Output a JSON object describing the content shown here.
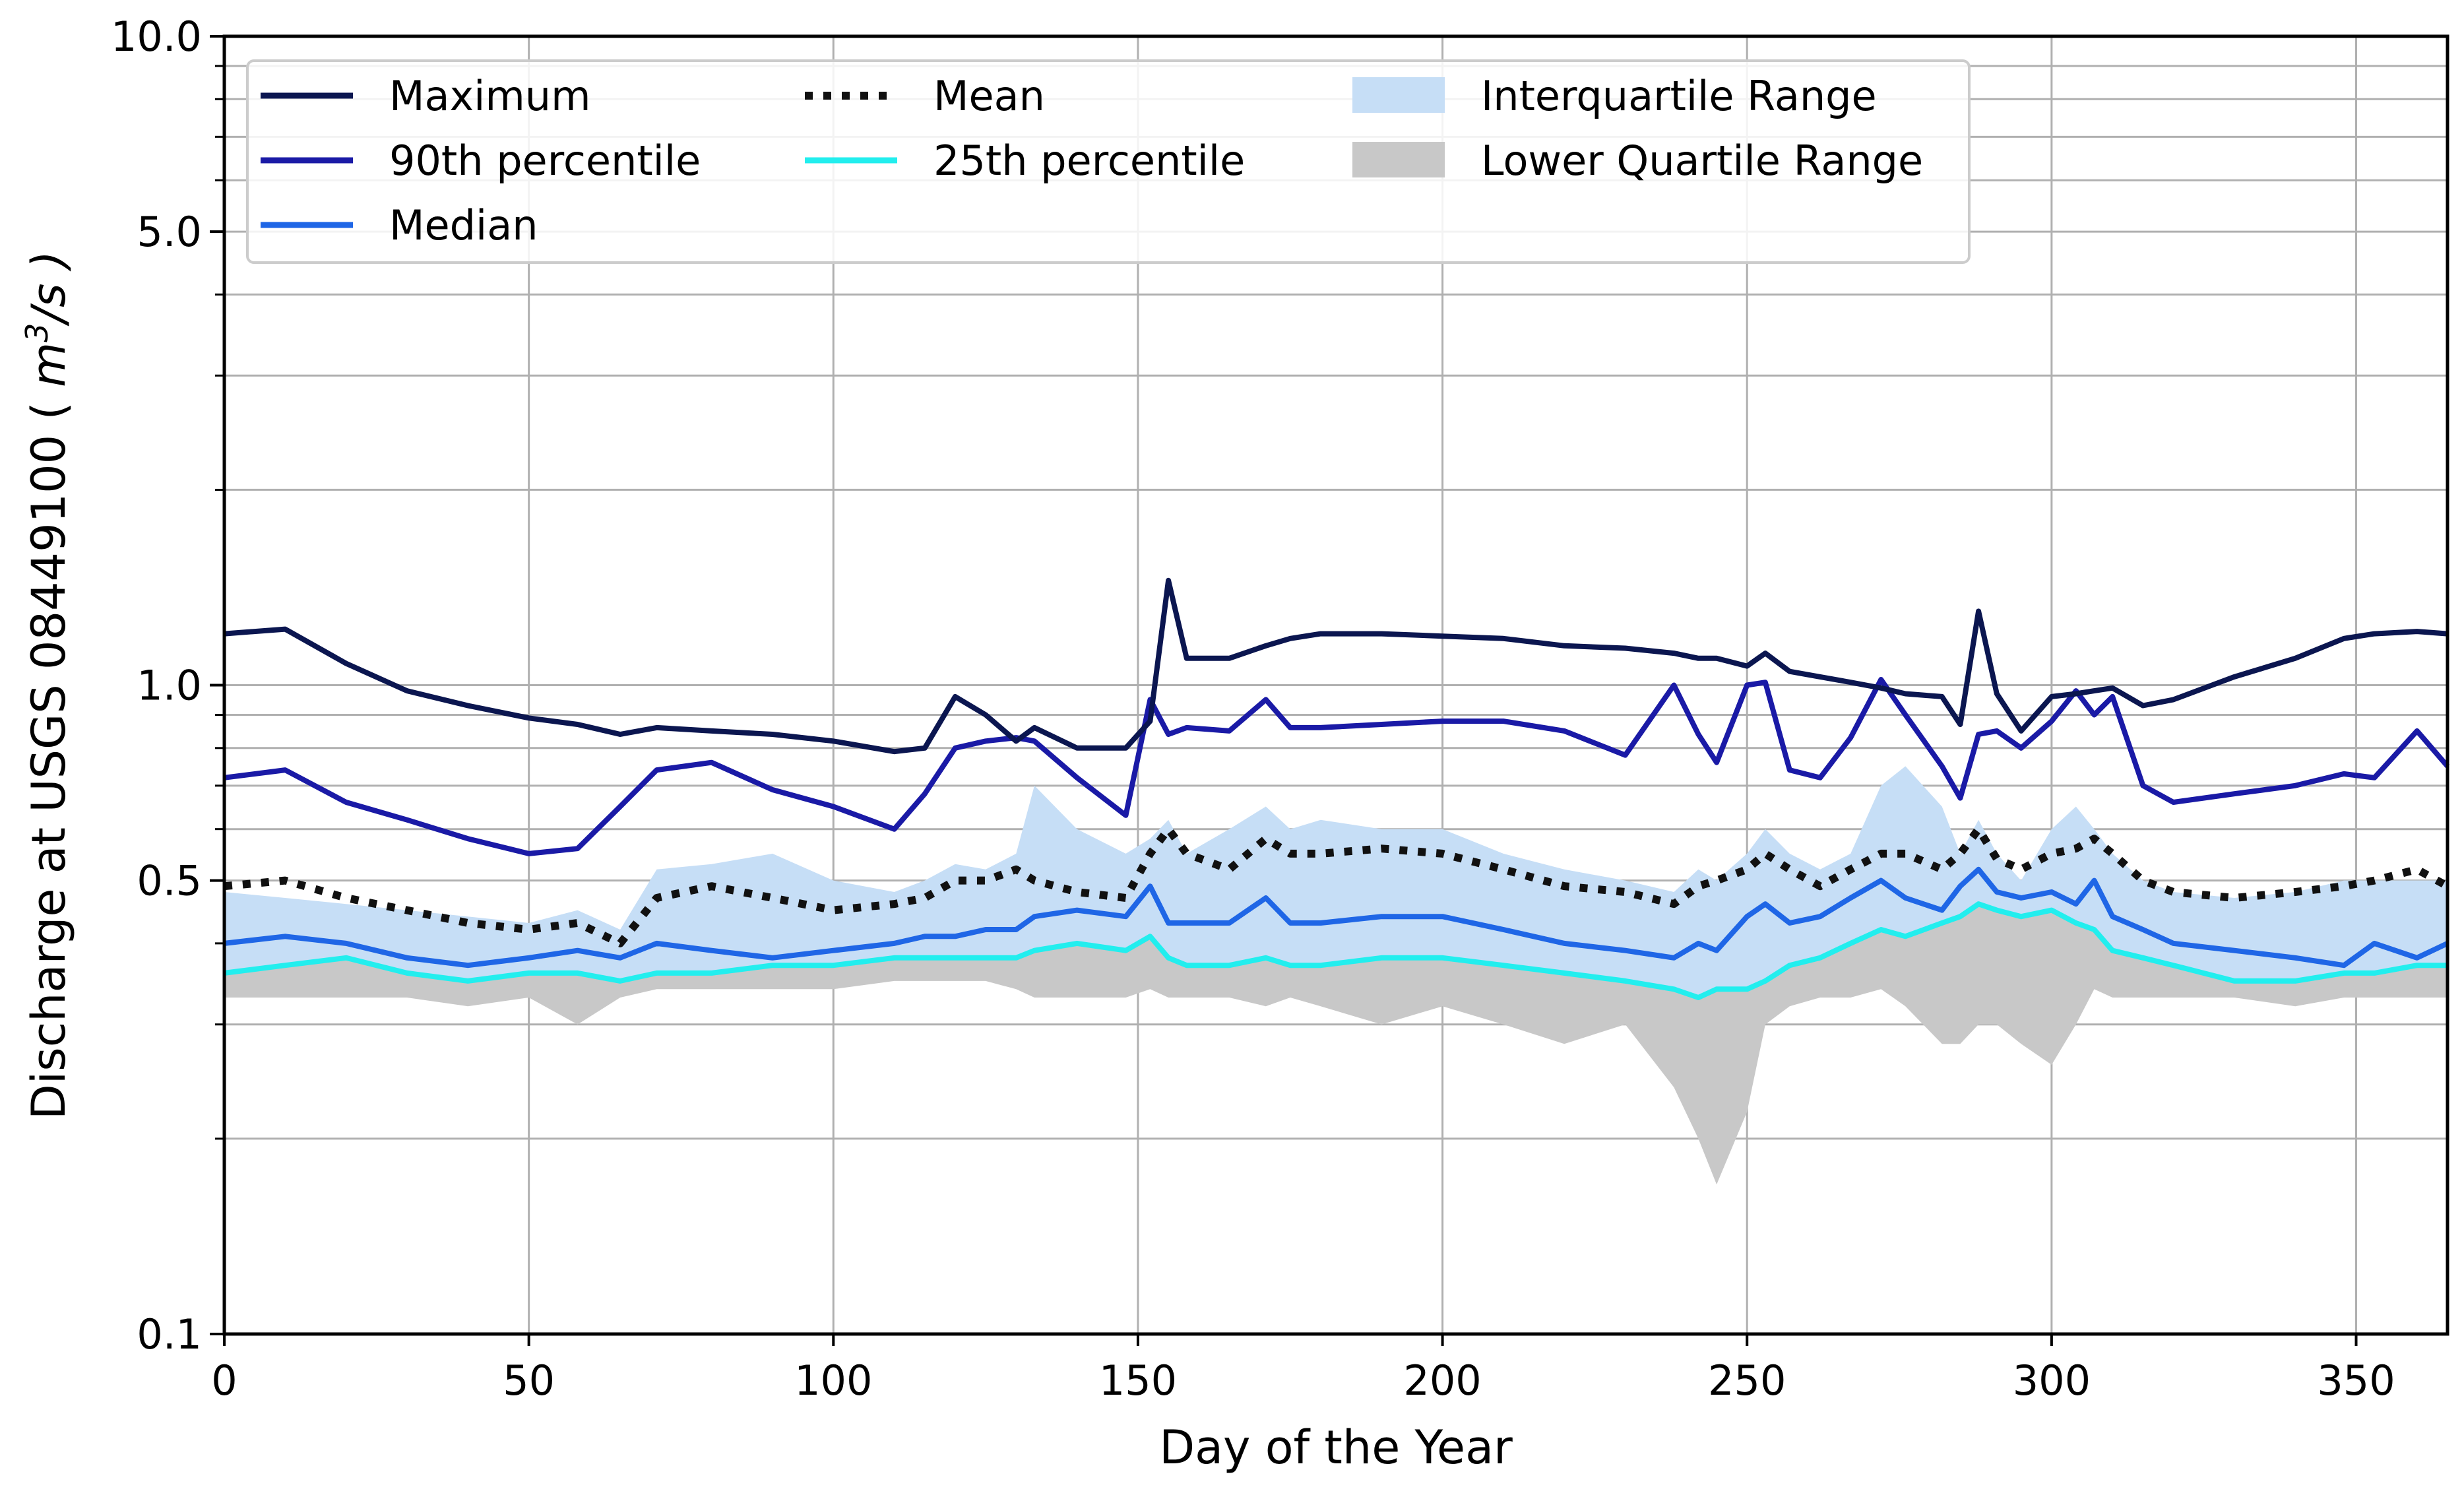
{
  "chart_data": {
    "type": "line",
    "title": "",
    "xlabel": "Day of the Year",
    "ylabel_prefix": "Discharge at USGS 08449100 ( ",
    "ylabel_unit": "m",
    "ylabel_sup": "3",
    "ylabel_suffix": "/s )",
    "yscale": "log",
    "xlim": [
      0,
      365
    ],
    "ylim": [
      0.1,
      10.0
    ],
    "xticks": [
      0,
      50,
      100,
      150,
      200,
      250,
      300,
      350
    ],
    "xtick_labels": [
      "0",
      "50",
      "100",
      "150",
      "200",
      "250",
      "300",
      "350"
    ],
    "yticks": [
      0.1,
      0.5,
      1.0,
      5.0,
      10.0
    ],
    "ytick_labels": [
      "0.1",
      "0.5",
      "1.0",
      "5.0",
      "10.0"
    ],
    "grid": true,
    "legend_position": "top-left",
    "legend": [
      {
        "key": "max",
        "label": "Maximum",
        "kind": "line",
        "color": "#0b1650"
      },
      {
        "key": "mean",
        "label": "Mean",
        "kind": "dotted",
        "color": "#111111"
      },
      {
        "key": "iqr",
        "label": "Interquartile Range",
        "kind": "patch",
        "color": "#c6def6"
      },
      {
        "key": "p90",
        "label": "90th percentile",
        "kind": "line",
        "color": "#1a1aa6"
      },
      {
        "key": "p25",
        "label": "25th percentile",
        "kind": "line",
        "color": "#22eeee"
      },
      {
        "key": "lqr",
        "label": "Lower Quartile Range",
        "kind": "patch",
        "color": "#c8c8c8"
      },
      {
        "key": "median",
        "label": "Median",
        "kind": "line",
        "color": "#1f66e6"
      }
    ],
    "x": [
      0,
      10,
      20,
      30,
      40,
      50,
      58,
      65,
      71,
      80,
      90,
      100,
      110,
      115,
      120,
      125,
      130,
      133,
      140,
      148,
      152,
      155,
      158,
      165,
      171,
      175,
      180,
      190,
      200,
      210,
      220,
      230,
      238,
      242,
      245,
      250,
      253,
      257,
      262,
      267,
      272,
      276,
      282,
      285,
      288,
      291,
      295,
      300,
      304,
      307,
      310,
      315,
      320,
      330,
      340,
      348,
      353,
      360,
      365
    ],
    "series": [
      {
        "name": "Maximum",
        "values": [
          1.2,
          1.22,
          1.08,
          0.98,
          0.93,
          0.89,
          0.87,
          0.84,
          0.86,
          0.85,
          0.84,
          0.82,
          0.79,
          0.8,
          0.96,
          0.9,
          0.82,
          0.86,
          0.8,
          0.8,
          0.88,
          1.45,
          1.1,
          1.1,
          1.15,
          1.18,
          1.2,
          1.2,
          1.19,
          1.18,
          1.15,
          1.14,
          1.12,
          1.1,
          1.1,
          1.07,
          1.12,
          1.05,
          1.03,
          1.01,
          0.99,
          0.97,
          0.96,
          0.87,
          1.3,
          0.97,
          0.85,
          0.96,
          0.97,
          0.98,
          0.99,
          0.93,
          0.95,
          1.03,
          1.1,
          1.18,
          1.2,
          1.21,
          1.2
        ]
      },
      {
        "name": "90th percentile",
        "values": [
          0.72,
          0.74,
          0.66,
          0.62,
          0.58,
          0.55,
          0.56,
          0.65,
          0.74,
          0.76,
          0.69,
          0.65,
          0.6,
          0.68,
          0.8,
          0.82,
          0.83,
          0.82,
          0.72,
          0.63,
          0.95,
          0.84,
          0.86,
          0.85,
          0.95,
          0.86,
          0.86,
          0.87,
          0.88,
          0.88,
          0.85,
          0.78,
          1.0,
          0.84,
          0.76,
          1.0,
          1.01,
          0.74,
          0.72,
          0.83,
          1.02,
          0.9,
          0.75,
          0.67,
          0.84,
          0.85,
          0.8,
          0.88,
          0.98,
          0.9,
          0.96,
          0.7,
          0.66,
          0.68,
          0.7,
          0.73,
          0.72,
          0.85,
          0.75
        ]
      },
      {
        "name": "Mean",
        "values": [
          0.49,
          0.5,
          0.47,
          0.45,
          0.43,
          0.42,
          0.43,
          0.4,
          0.47,
          0.49,
          0.47,
          0.45,
          0.46,
          0.47,
          0.5,
          0.5,
          0.52,
          0.5,
          0.48,
          0.47,
          0.55,
          0.6,
          0.55,
          0.52,
          0.58,
          0.55,
          0.55,
          0.56,
          0.55,
          0.52,
          0.49,
          0.48,
          0.46,
          0.49,
          0.5,
          0.52,
          0.55,
          0.52,
          0.49,
          0.52,
          0.55,
          0.55,
          0.52,
          0.55,
          0.6,
          0.54,
          0.52,
          0.55,
          0.56,
          0.58,
          0.55,
          0.5,
          0.48,
          0.47,
          0.48,
          0.49,
          0.5,
          0.52,
          0.49
        ]
      },
      {
        "name": "Median",
        "values": [
          0.4,
          0.41,
          0.4,
          0.38,
          0.37,
          0.38,
          0.39,
          0.38,
          0.4,
          0.39,
          0.38,
          0.39,
          0.4,
          0.41,
          0.41,
          0.42,
          0.42,
          0.44,
          0.45,
          0.44,
          0.49,
          0.43,
          0.43,
          0.43,
          0.47,
          0.43,
          0.43,
          0.44,
          0.44,
          0.42,
          0.4,
          0.39,
          0.38,
          0.4,
          0.39,
          0.44,
          0.46,
          0.43,
          0.44,
          0.47,
          0.5,
          0.47,
          0.45,
          0.49,
          0.52,
          0.48,
          0.47,
          0.48,
          0.46,
          0.5,
          0.44,
          0.42,
          0.4,
          0.39,
          0.38,
          0.37,
          0.4,
          0.38,
          0.4
        ]
      },
      {
        "name": "25th percentile",
        "values": [
          0.36,
          0.37,
          0.38,
          0.36,
          0.35,
          0.36,
          0.36,
          0.35,
          0.36,
          0.36,
          0.37,
          0.37,
          0.38,
          0.38,
          0.38,
          0.38,
          0.38,
          0.39,
          0.4,
          0.39,
          0.41,
          0.38,
          0.37,
          0.37,
          0.38,
          0.37,
          0.37,
          0.38,
          0.38,
          0.37,
          0.36,
          0.35,
          0.34,
          0.33,
          0.34,
          0.34,
          0.35,
          0.37,
          0.38,
          0.4,
          0.42,
          0.41,
          0.43,
          0.44,
          0.46,
          0.45,
          0.44,
          0.45,
          0.43,
          0.42,
          0.39,
          0.38,
          0.37,
          0.35,
          0.35,
          0.36,
          0.36,
          0.37,
          0.37
        ]
      },
      {
        "name": "Interquartile Range upper",
        "values": [
          0.48,
          0.47,
          0.46,
          0.45,
          0.44,
          0.43,
          0.45,
          0.42,
          0.52,
          0.53,
          0.55,
          0.5,
          0.48,
          0.5,
          0.53,
          0.52,
          0.55,
          0.7,
          0.6,
          0.55,
          0.58,
          0.62,
          0.55,
          0.6,
          0.65,
          0.6,
          0.62,
          0.6,
          0.6,
          0.55,
          0.52,
          0.5,
          0.48,
          0.52,
          0.5,
          0.55,
          0.6,
          0.55,
          0.52,
          0.55,
          0.7,
          0.75,
          0.65,
          0.55,
          0.62,
          0.55,
          0.5,
          0.6,
          0.65,
          0.6,
          0.55,
          0.5,
          0.48,
          0.47,
          0.48,
          0.5,
          0.5,
          0.5,
          0.5
        ]
      },
      {
        "name": "Lower Quartile Range lower",
        "values": [
          0.33,
          0.33,
          0.33,
          0.33,
          0.32,
          0.33,
          0.3,
          0.33,
          0.34,
          0.34,
          0.34,
          0.34,
          0.35,
          0.35,
          0.35,
          0.35,
          0.34,
          0.33,
          0.33,
          0.33,
          0.34,
          0.33,
          0.33,
          0.33,
          0.32,
          0.33,
          0.32,
          0.3,
          0.32,
          0.3,
          0.28,
          0.3,
          0.24,
          0.2,
          0.17,
          0.22,
          0.3,
          0.32,
          0.33,
          0.33,
          0.34,
          0.32,
          0.28,
          0.28,
          0.3,
          0.3,
          0.28,
          0.26,
          0.3,
          0.34,
          0.33,
          0.33,
          0.33,
          0.33,
          0.32,
          0.33,
          0.33,
          0.33,
          0.33
        ]
      }
    ]
  }
}
